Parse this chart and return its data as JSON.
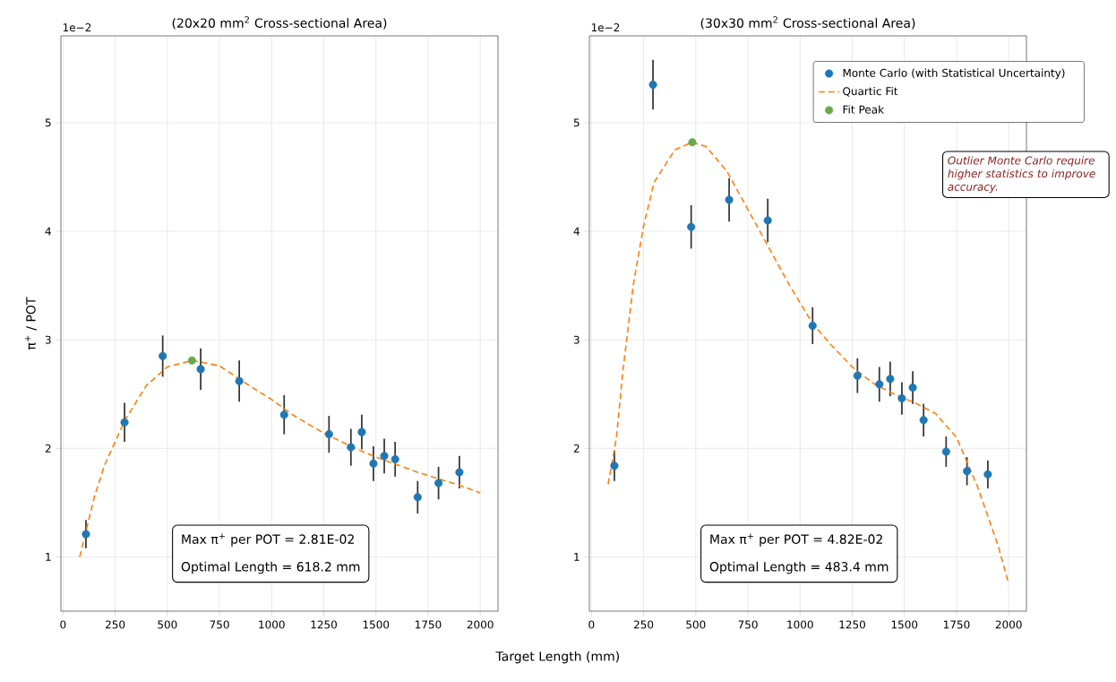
{
  "chart_data": [
    {
      "type": "scatter",
      "title": "(20x20 mm$^{2}$ Cross-sectional Area)",
      "xlabel": "Target Length (mm)",
      "ylabel": "π$^{+}$ / POT",
      "xlim": [
        -10,
        2085
      ],
      "ylim": [
        0.5,
        5.8
      ],
      "xticks": [
        0,
        250,
        500,
        750,
        1000,
        1250,
        1500,
        1750,
        2000
      ],
      "yticks": [
        1,
        2,
        3,
        4,
        5
      ],
      "grid": true,
      "series": [
        {
          "type": "scatter",
          "marker": "circle",
          "color": "#1f77b4",
          "x": [
            110,
            295,
            478,
            660,
            845,
            1060,
            1275,
            1380,
            1432,
            1488,
            1540,
            1592,
            1700,
            1800,
            1900
          ],
          "values": [
            1.21,
            2.24,
            2.85,
            2.73,
            2.62,
            2.31,
            2.13,
            2.01,
            2.15,
            1.86,
            1.93,
            1.9,
            1.55,
            1.68,
            1.78
          ],
          "errors": [
            0.13,
            0.18,
            0.19,
            0.19,
            0.19,
            0.18,
            0.17,
            0.17,
            0.16,
            0.16,
            0.16,
            0.16,
            0.15,
            0.15,
            0.15
          ]
        },
        {
          "type": "line",
          "marker": "none",
          "line_style": "dashed",
          "color": "#ff7f0e",
          "x": [
            80,
            150,
            200,
            300,
            400,
            500,
            618.2,
            750,
            900,
            1000,
            1100,
            1250,
            1400,
            1500,
            1600,
            1700,
            1800,
            1900,
            2000
          ],
          "values": [
            1.0,
            1.55,
            1.85,
            2.27,
            2.58,
            2.75,
            2.81,
            2.76,
            2.57,
            2.45,
            2.31,
            2.14,
            2.0,
            1.92,
            1.85,
            1.78,
            1.72,
            1.66,
            1.59
          ]
        },
        {
          "type": "scatter",
          "marker": "circle",
          "color": "#6aa84f",
          "x": [
            618.2
          ],
          "values": [
            2.81
          ]
        }
      ],
      "annotations": [
        "1e−2",
        "Max π$^{+}$ per POT = 2.81E-02",
        "Optimal Length = 618.2 mm"
      ]
    },
    {
      "type": "scatter",
      "title": "(30x30 mm$^{2}$ Cross-sectional Area)",
      "xlim": [
        -10,
        2085
      ],
      "ylim": [
        0.5,
        5.8
      ],
      "xticks": [
        0,
        250,
        500,
        750,
        1000,
        1250,
        1500,
        1750,
        2000
      ],
      "yticks": [
        1,
        2,
        3,
        4,
        5
      ],
      "grid": true,
      "legend": "top right",
      "series": [
        {
          "name": "Monte Carlo (with Statistical Uncertainty)",
          "type": "scatter",
          "marker": "circle",
          "color": "#1f77b4",
          "x": [
            110,
            295,
            478,
            660,
            845,
            1060,
            1275,
            1380,
            1432,
            1488,
            1540,
            1592,
            1700,
            1800,
            1900
          ],
          "values": [
            1.84,
            5.35,
            4.04,
            4.29,
            4.1,
            3.13,
            2.67,
            2.59,
            2.64,
            2.46,
            2.56,
            2.26,
            1.97,
            1.79,
            1.76
          ],
          "errors": [
            0.14,
            0.23,
            0.2,
            0.2,
            0.2,
            0.17,
            0.16,
            0.16,
            0.16,
            0.15,
            0.15,
            0.15,
            0.14,
            0.13,
            0.13
          ]
        },
        {
          "name": "Quartic Fit",
          "type": "line",
          "marker": "none",
          "line_style": "dashed",
          "color": "#ff7f0e",
          "x": [
            80,
            120,
            150,
            200,
            250,
            300,
            400,
            483.4,
            550,
            650,
            750,
            850,
            950,
            1060,
            1150,
            1250,
            1350,
            1450,
            1550,
            1650,
            1750,
            1850,
            1950,
            2000
          ],
          "values": [
            1.67,
            2.1,
            2.7,
            3.5,
            4.05,
            4.45,
            4.75,
            4.82,
            4.78,
            4.55,
            4.2,
            3.85,
            3.5,
            3.15,
            2.95,
            2.75,
            2.6,
            2.5,
            2.42,
            2.32,
            2.1,
            1.65,
            1.1,
            0.75
          ]
        },
        {
          "name": "Fit Peak",
          "type": "scatter",
          "marker": "circle",
          "color": "#6aa84f",
          "x": [
            483.4
          ],
          "values": [
            4.82
          ]
        }
      ],
      "annotations": [
        "1e−2",
        "Max π$^{+}$ per POT = 4.82E-02",
        "Optimal Length = 483.4 mm",
        "Outlier Monte Carlo require higher statistics to improve accuracy."
      ]
    }
  ]
}
